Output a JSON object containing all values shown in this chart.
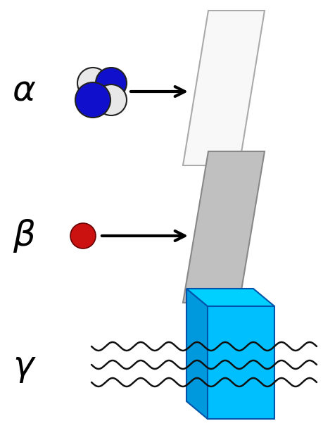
{
  "bg_color": "#ffffff",
  "alpha_label": "α",
  "beta_label": "β",
  "gamma_label": "γ",
  "label_fontsize": 36,
  "nucleus_blue": "#1010cc",
  "nucleus_white": "#e8e8e8",
  "beta_red": "#cc1111",
  "wavy_color": "#111111",
  "box_front_color": "#00bfff",
  "box_top_color": "#00d0ff",
  "box_left_color": "#0099dd",
  "plate_white_color": "#f8f8f8",
  "plate_grey_color": "#c0c0c0",
  "plate_edge_color": "#aaaaaa"
}
